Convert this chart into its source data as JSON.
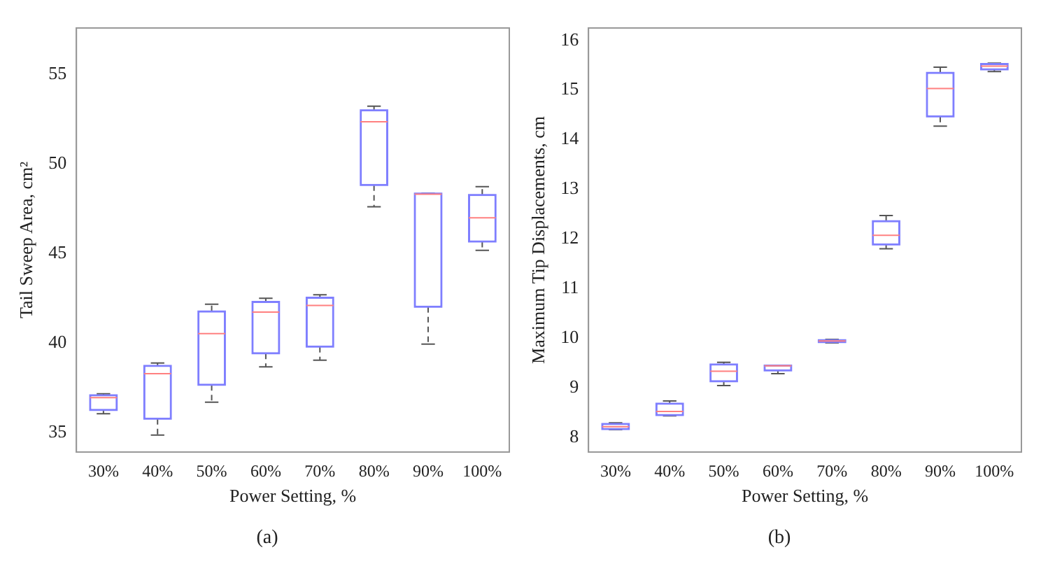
{
  "chart_data": [
    {
      "type": "box",
      "categories": [
        "30%",
        "40%",
        "50%",
        "60%",
        "70%",
        "80%",
        "90%",
        "100%"
      ],
      "xlabel": "Power Setting, %",
      "ylabel": "Tail Sweep Area, cm²",
      "ylim": [
        33.9,
        57.6
      ],
      "yticks": [
        35,
        40,
        45,
        50,
        55
      ],
      "grid": false,
      "legend": false,
      "color": "#7f7fff",
      "annotations": [
        "(a)"
      ],
      "boxes": [
        {
          "low": 36.04,
          "q1": 36.24,
          "median": 36.94,
          "q3": 37.09,
          "high": 37.16
        },
        {
          "low": 34.85,
          "q1": 35.75,
          "median": 38.28,
          "q3": 38.73,
          "high": 38.88
        },
        {
          "low": 36.69,
          "q1": 37.64,
          "median": 40.52,
          "q3": 41.77,
          "high": 42.16
        },
        {
          "low": 38.66,
          "q1": 39.4,
          "median": 41.72,
          "q3": 42.31,
          "high": 42.49
        },
        {
          "low": 39.03,
          "q1": 39.78,
          "median": 42.09,
          "q3": 42.54,
          "high": 42.69
        },
        {
          "low": 47.61,
          "q1": 48.81,
          "median": 52.36,
          "q3": 53.01,
          "high": 53.23
        },
        {
          "low": 39.93,
          "q1": 42.01,
          "median": 48.31,
          "q3": 48.36,
          "high": 48.36
        },
        {
          "low": 45.17,
          "q1": 45.65,
          "median": 46.99,
          "q3": 48.28,
          "high": 48.73
        }
      ]
    },
    {
      "type": "box",
      "categories": [
        "30%",
        "40%",
        "50%",
        "60%",
        "70%",
        "80%",
        "90%",
        "100%"
      ],
      "xlabel": "Power Setting, %",
      "ylabel": "Maximum Tip Displacements, cm",
      "ylim": [
        7.7,
        16.25
      ],
      "yticks": [
        8,
        9,
        10,
        11,
        12,
        13,
        14,
        15,
        16
      ],
      "grid": false,
      "legend": false,
      "color": "#7f7fff",
      "annotations": [
        "(b)"
      ],
      "boxes": [
        {
          "low": 8.15,
          "q1": 8.16,
          "median": 8.21,
          "q3": 8.27,
          "high": 8.29
        },
        {
          "low": 8.43,
          "q1": 8.44,
          "median": 8.52,
          "q3": 8.68,
          "high": 8.73
        },
        {
          "low": 9.04,
          "q1": 9.12,
          "median": 9.33,
          "q3": 9.47,
          "high": 9.51
        },
        {
          "low": 9.28,
          "q1": 9.34,
          "median": 9.44,
          "q3": 9.45,
          "high": 9.45
        },
        {
          "low": 9.9,
          "q1": 9.91,
          "median": 9.94,
          "q3": 9.96,
          "high": 9.97
        },
        {
          "low": 11.8,
          "q1": 11.88,
          "median": 12.07,
          "q3": 12.36,
          "high": 12.47
        },
        {
          "low": 14.27,
          "q1": 14.46,
          "median": 15.03,
          "q3": 15.35,
          "high": 15.46
        },
        {
          "low": 15.37,
          "q1": 15.41,
          "median": 15.48,
          "q3": 15.53,
          "high": 15.54
        }
      ]
    }
  ]
}
